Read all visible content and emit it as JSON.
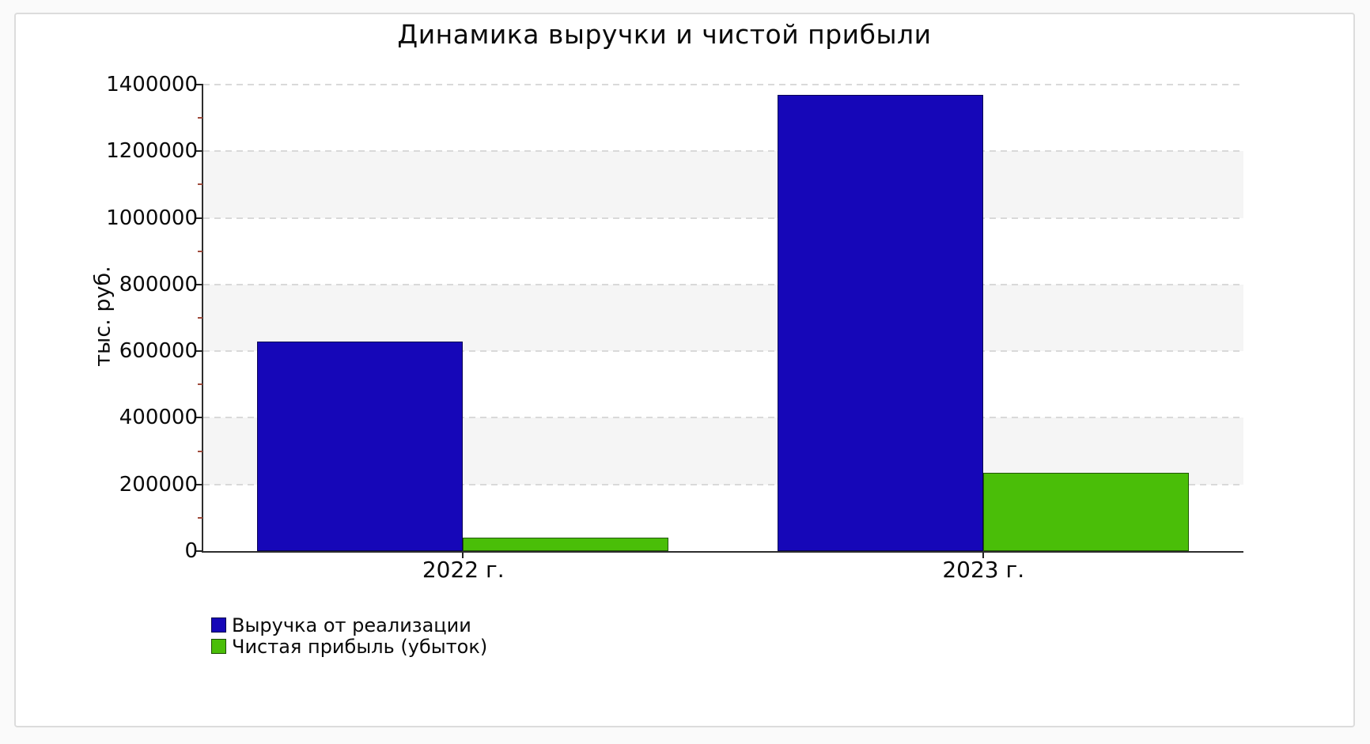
{
  "chart_data": {
    "type": "bar",
    "title": "Динамика выручки и чистой прибыли",
    "ylabel": "тыс. руб.",
    "xlabel": "",
    "categories": [
      "2022 г.",
      "2023 г."
    ],
    "series": [
      {
        "name": "Выручка от реализации",
        "color": "#1607b8",
        "values": [
          630000,
          1370000
        ]
      },
      {
        "name": "Чистая прибыль (убыток)",
        "color": "#4abe08",
        "values": [
          40000,
          235000
        ]
      }
    ],
    "ylim": [
      0,
      1400000
    ],
    "ytick_step": 200000,
    "ytick_labels": [
      "0",
      "200000",
      "400000",
      "600000",
      "800000",
      "1000000",
      "1200000",
      "1400000"
    ],
    "minor_tick_step": 100000,
    "grid": "horizontal dashed lines at major ticks",
    "band_fill": "#f5f5f5",
    "band_intervals": [
      [
        200000,
        400000
      ],
      [
        600000,
        800000
      ],
      [
        1000000,
        1200000
      ]
    ],
    "legend_position": "bottom-left"
  }
}
